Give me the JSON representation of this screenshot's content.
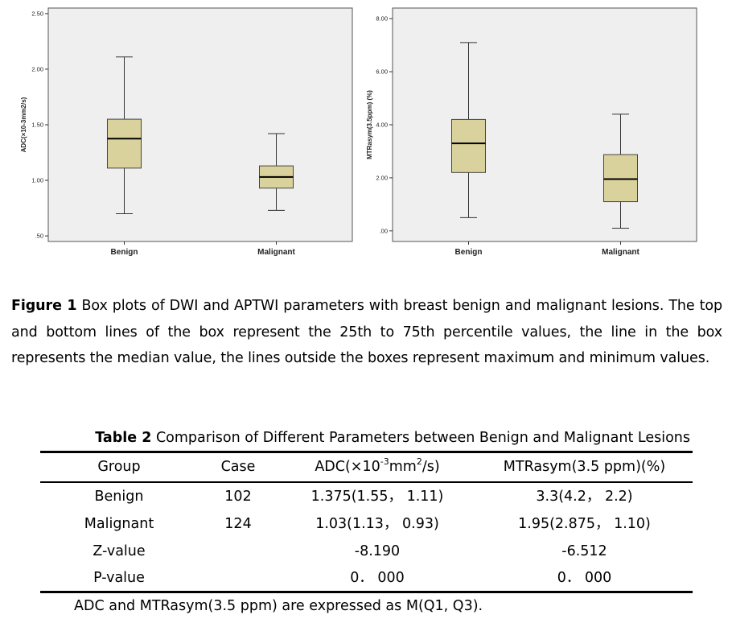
{
  "chart_data": [
    {
      "type": "boxplot",
      "ylabel": "ADC(×10-3mm2/s)",
      "xlabel": "",
      "ylim": [
        0.45,
        2.55
      ],
      "yticks": [
        0.5,
        1.0,
        1.5,
        2.0,
        2.5
      ],
      "yticklabels": [
        ".50",
        "1.00",
        "1.50",
        "2.00",
        "2.50"
      ],
      "grid": false,
      "box_color": "#d9d29c",
      "categories": [
        "Benign",
        "Malignant"
      ],
      "boxes": [
        {
          "name": "Benign",
          "min": 0.7,
          "q1": 1.11,
          "median": 1.375,
          "q3": 1.55,
          "max": 2.11
        },
        {
          "name": "Malignant",
          "min": 0.73,
          "q1": 0.93,
          "median": 1.03,
          "q3": 1.13,
          "max": 1.42
        }
      ]
    },
    {
      "type": "boxplot",
      "ylabel": "MTRasym(3.5ppm) (%)",
      "xlabel": "",
      "ylim": [
        -0.4,
        8.4
      ],
      "yticks": [
        0,
        2,
        4,
        6,
        8
      ],
      "yticklabels": [
        ".00",
        "2.00",
        "4.00",
        "6.00",
        "8.00"
      ],
      "grid": false,
      "box_color": "#d9d29c",
      "categories": [
        "Benign",
        "Malignant"
      ],
      "boxes": [
        {
          "name": "Benign",
          "min": 0.5,
          "q1": 2.2,
          "median": 3.3,
          "q3": 4.2,
          "max": 7.1
        },
        {
          "name": "Malignant",
          "min": 0.1,
          "q1": 1.1,
          "median": 1.95,
          "q3": 2.875,
          "max": 4.4
        }
      ]
    }
  ],
  "figure_caption": {
    "label": "Figure 1",
    "text": " Box plots of DWI and APTWI parameters with breast benign and malignant lesions. The top and bottom lines of the box represent the 25th to 75th percentile values, the line in the box represents the median value, the lines outside the boxes represent maximum and minimum values."
  },
  "table": {
    "title_label": "Table 2",
    "title_text": " Comparison of Different Parameters between Benign and Malignant Lesions",
    "headers": {
      "group": "Group",
      "case": "Case",
      "adc_pre": "ADC(×10",
      "adc_exp1": "-3",
      "adc_mid": "mm",
      "adc_exp2": "2",
      "adc_post": "/s)",
      "mtr": "MTRasym(3.5 ppm)(%)"
    },
    "rows": [
      {
        "group": "Benign",
        "case": "102",
        "adc": "1.375(1.55， 1.11)",
        "mtr": "3.3(4.2， 2.2)"
      },
      {
        "group": "Malignant",
        "case": "124",
        "adc": "1.03(1.13， 0.93)",
        "mtr": "1.95(2.875， 1.10)"
      },
      {
        "group": "Z-value",
        "case": "",
        "adc": "-8.190",
        "mtr": "-6.512"
      },
      {
        "group": "P-value",
        "case": "",
        "adc": "0． 000",
        "mtr": "0． 000"
      }
    ],
    "footnote": "ADC and MTRasym(3.5 ppm) are expressed as M(Q1, Q3)."
  }
}
